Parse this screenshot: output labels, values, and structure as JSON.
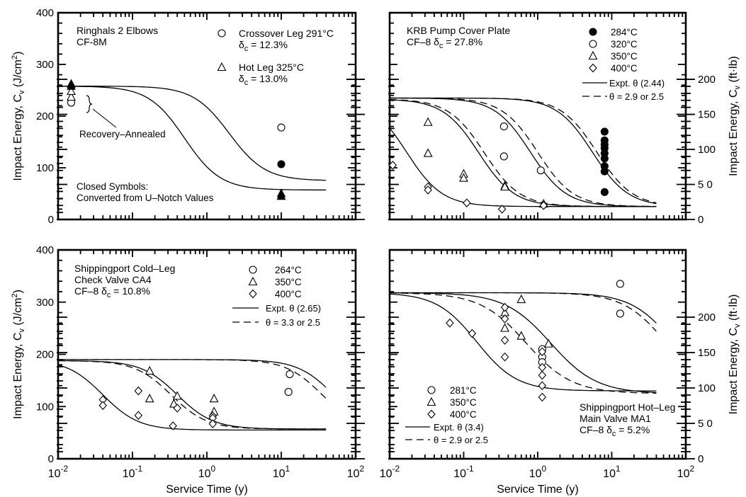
{
  "figure": {
    "x_axis_label": "Service Time (y)",
    "y_axis_label_left": "Impact Energy, C",
    "y_axis_label_left_sub": "v",
    "y_axis_label_left_unit": " (J/cm",
    "y_axis_label_left_unit_sup": "2",
    "y_axis_label_left_unit_end": ")",
    "y_axis_label_right": "Impact Energy, C",
    "y_axis_label_right_sub": "v",
    "y_axis_label_right_unit": " (ft·lb)",
    "x_tick_labels": [
      {
        "base": "10",
        "exp": "-2"
      },
      {
        "base": "10",
        "exp": "-1"
      },
      {
        "base": "10",
        "exp": "0"
      },
      {
        "base": "10",
        "exp": "1"
      },
      {
        "base": "10",
        "exp": "2"
      }
    ],
    "left_tick_labels": [
      "0",
      "100",
      "200",
      "300",
      "400"
    ],
    "right_tick_labels": [
      "0",
      "5 0",
      "100",
      "150",
      "200"
    ]
  },
  "chart_data": [
    {
      "type": "scatter",
      "panel": "top-left",
      "title_lines": [
        "Ringhals 2 Elbows",
        "CF-8M"
      ],
      "xscale": "log",
      "xlim": [
        0.01,
        100
      ],
      "ylim": [
        0,
        400
      ],
      "ylabel": "Impact Energy, Cv (J/cm2)",
      "legend": [
        {
          "symbol": "circle",
          "line1": "Crossover Leg 291°C",
          "line2_prefix": "δ",
          "line2_sub": "c",
          "line2_rest": " = 12.3%"
        },
        {
          "symbol": "triangle",
          "line1": "Hot Leg 325°C",
          "line2_prefix": "δ",
          "line2_sub": "c",
          "line2_rest": " = 13.0%"
        }
      ],
      "annotations": [
        "Recovery–Annealed",
        "Closed Symbols:",
        "Converted from U–Notch Values"
      ],
      "series": [
        {
          "marker": "circle",
          "filled": false,
          "points": [
            [
              0.015,
              226
            ],
            [
              10,
              178
            ]
          ]
        },
        {
          "marker": "circle",
          "filled": true,
          "points": [
            [
              10,
              107
            ]
          ]
        },
        {
          "marker": "triangle",
          "filled": false,
          "points": [
            [
              0.015,
              237
            ],
            [
              0.015,
              248
            ]
          ]
        },
        {
          "marker": "triangle",
          "filled": true,
          "points": [
            [
              0.015,
              258
            ],
            [
              0.015,
              262
            ],
            [
              10,
              45
            ],
            [
              10,
              50
            ]
          ]
        }
      ],
      "curves": [
        {
          "style": "solid",
          "upper": 258,
          "lower": 75,
          "mid": 2.0,
          "slope": 1.8
        },
        {
          "style": "solid",
          "upper": 258,
          "lower": 57,
          "mid": 0.5,
          "slope": 1.8
        }
      ]
    },
    {
      "type": "scatter",
      "panel": "top-right",
      "title_lines": [
        "KRB Pump Cover Plate"
      ],
      "title_line2": {
        "prefix": "CF–8  δ",
        "sub": "c",
        "rest": " = 27.8%"
      },
      "xscale": "log",
      "xlim": [
        0.01,
        100
      ],
      "ylim": [
        0,
        400
      ],
      "legend": [
        {
          "symbol": "circle-filled",
          "label": "284°C"
        },
        {
          "symbol": "circle",
          "label": "320°C"
        },
        {
          "symbol": "triangle",
          "label": "350°C"
        },
        {
          "symbol": "diamond",
          "label": "400°C"
        }
      ],
      "line_legend": [
        {
          "style": "solid",
          "label": "Expt. θ (2.44)"
        },
        {
          "style": "dashed",
          "label": "θ = 2.9 or 2.5"
        }
      ],
      "series": [
        {
          "name": "284°C",
          "marker": "circle",
          "filled": true,
          "points": [
            [
              8,
              53
            ],
            [
              8,
              93
            ],
            [
              8,
              103
            ],
            [
              8,
              118
            ],
            [
              8,
              128
            ],
            [
              8,
              138
            ],
            [
              8,
              145
            ],
            [
              8,
              153
            ],
            [
              8,
              170
            ]
          ]
        },
        {
          "name": "320°C",
          "marker": "circle",
          "filled": false,
          "points": [
            [
              0.35,
              180
            ],
            [
              0.35,
              122
            ],
            [
              1.1,
              95
            ]
          ]
        },
        {
          "name": "350°C",
          "marker": "triangle",
          "filled": false,
          "points": [
            [
              0.033,
              188
            ],
            [
              0.033,
              128
            ],
            [
              0.1,
              88
            ],
            [
              0.1,
              80
            ],
            [
              0.36,
              65
            ],
            [
              0.36,
              63
            ],
            [
              1.2,
              30
            ]
          ]
        },
        {
          "name": "400°C",
          "marker": "diamond",
          "filled": false,
          "points": [
            [
              0.011,
              105
            ],
            [
              0.033,
              63
            ],
            [
              0.033,
              57
            ],
            [
              0.11,
              32
            ],
            [
              0.33,
              20
            ],
            [
              1.2,
              27
            ]
          ]
        }
      ],
      "curves": [
        {
          "style": "solid",
          "upper": 235,
          "lower": 25,
          "mid": 0.017,
          "slope": 1.8
        },
        {
          "style": "solid",
          "upper": 233,
          "lower": 25,
          "mid": 0.16,
          "slope": 1.8
        },
        {
          "style": "dashed",
          "upper": 233,
          "lower": 25,
          "mid": 0.19,
          "slope": 1.8
        },
        {
          "style": "solid",
          "upper": 235,
          "lower": 25,
          "mid": 0.8,
          "slope": 1.8
        },
        {
          "style": "dashed",
          "upper": 235,
          "lower": 25,
          "mid": 1.0,
          "slope": 1.8
        },
        {
          "style": "solid",
          "upper": 235,
          "lower": 25,
          "mid": 5.5,
          "slope": 1.8
        },
        {
          "style": "dashed",
          "upper": 235,
          "lower": 25,
          "mid": 6.3,
          "slope": 1.8
        }
      ]
    },
    {
      "type": "scatter",
      "panel": "bottom-left",
      "title_lines": [
        "Shippingport Cold–Leg",
        "Check Valve CA4"
      ],
      "title_line3": {
        "prefix": "CF–8  δ",
        "sub": "c",
        "rest": " = 10.8%"
      },
      "xscale": "log",
      "xlim": [
        0.01,
        100
      ],
      "ylim": [
        0,
        400
      ],
      "ylabel": "Impact Energy, Cv (J/cm2)",
      "legend": [
        {
          "symbol": "circle",
          "label": "264°C"
        },
        {
          "symbol": "triangle",
          "label": "350°C"
        },
        {
          "symbol": "diamond",
          "label": "400°C"
        }
      ],
      "line_legend": [
        {
          "style": "solid",
          "label": "Expt. θ (2.65)"
        },
        {
          "style": "dashed",
          "label": "θ = 3.3 or 2.5"
        }
      ],
      "series": [
        {
          "name": "264°C",
          "marker": "circle",
          "filled": false,
          "points": [
            [
              13,
              162
            ],
            [
              12.5,
              128
            ]
          ]
        },
        {
          "name": "350°C",
          "marker": "triangle",
          "filled": false,
          "points": [
            [
              0.17,
              168
            ],
            [
              0.17,
              115
            ],
            [
              0.4,
              120
            ],
            [
              0.36,
              105
            ],
            [
              1.25,
              115
            ],
            [
              1.25,
              90
            ]
          ]
        },
        {
          "name": "400°C",
          "marker": "diamond",
          "filled": false,
          "points": [
            [
              0.04,
              113
            ],
            [
              0.04,
              102
            ],
            [
              0.12,
              130
            ],
            [
              0.12,
              83
            ],
            [
              0.35,
              63
            ],
            [
              0.4,
              97
            ],
            [
              1.2,
              82
            ],
            [
              1.2,
              78
            ],
            [
              1.2,
              67
            ]
          ]
        }
      ],
      "curves": [
        {
          "style": "solid",
          "upper": 190,
          "lower": 55,
          "mid": 0.04,
          "slope": 1.8
        },
        {
          "style": "solid",
          "upper": 188,
          "lower": 57,
          "mid": 0.4,
          "slope": 1.8
        },
        {
          "style": "dashed",
          "upper": 188,
          "lower": 57,
          "mid": 0.33,
          "slope": 1.8
        },
        {
          "style": "solid",
          "upper": 190,
          "lower": 57,
          "mid": 50,
          "slope": 1.8
        },
        {
          "style": "dashed",
          "upper": 190,
          "lower": 57,
          "mid": 35,
          "slope": 1.8
        }
      ]
    },
    {
      "type": "scatter",
      "panel": "bottom-right",
      "title_lines": [
        "Shippingport Hot–Leg",
        "Main Valve MA1"
      ],
      "title_line3": {
        "prefix": "CF–8  δ",
        "sub": "c",
        "rest": " = 5.2%"
      },
      "xscale": "log",
      "xlim": [
        0.01,
        100
      ],
      "ylim": [
        0,
        400
      ],
      "legend": [
        {
          "symbol": "circle",
          "label": "281°C"
        },
        {
          "symbol": "triangle",
          "label": "350°C"
        },
        {
          "symbol": "diamond",
          "label": "400°C"
        }
      ],
      "line_legend": [
        {
          "style": "solid",
          "label": "Expt. θ (3.4)"
        },
        {
          "style": "dashed",
          "label": "θ = 2.9 or 2.5"
        }
      ],
      "series": [
        {
          "name": "281°C",
          "marker": "circle",
          "filled": false,
          "points": [
            [
              13,
              335
            ],
            [
              13,
              278
            ],
            [
              1.15,
              210
            ],
            [
              1.15,
              195
            ],
            [
              1.15,
              185
            ]
          ]
        },
        {
          "name": "350°C",
          "marker": "triangle",
          "filled": false,
          "points": [
            [
              0.6,
              305
            ],
            [
              0.36,
              280
            ],
            [
              0.36,
              250
            ],
            [
              0.6,
              235
            ],
            [
              1.4,
              220
            ]
          ]
        },
        {
          "name": "400°C",
          "marker": "diamond",
          "filled": false,
          "points": [
            [
              0.065,
              260
            ],
            [
              0.13,
              240
            ],
            [
              0.36,
              290
            ],
            [
              0.36,
              268
            ],
            [
              0.36,
              227
            ],
            [
              0.36,
              195
            ],
            [
              1.15,
              205
            ],
            [
              1.15,
              175
            ],
            [
              1.15,
              160
            ],
            [
              1.15,
              140
            ],
            [
              1.15,
              118
            ]
          ]
        }
      ],
      "curves": [
        {
          "style": "solid",
          "upper": 318,
          "lower": 130,
          "mid": 0.15,
          "slope": 1.6
        },
        {
          "style": "solid",
          "upper": 318,
          "lower": 125,
          "mid": 1.5,
          "slope": 1.4
        },
        {
          "style": "dashed",
          "upper": 318,
          "lower": 125,
          "mid": 0.7,
          "slope": 1.4
        },
        {
          "style": "solid",
          "upper": 318,
          "lower": 125,
          "mid": 70,
          "slope": 1.5
        },
        {
          "style": "dashed",
          "upper": 318,
          "lower": 125,
          "mid": 55,
          "slope": 1.5
        }
      ]
    }
  ]
}
